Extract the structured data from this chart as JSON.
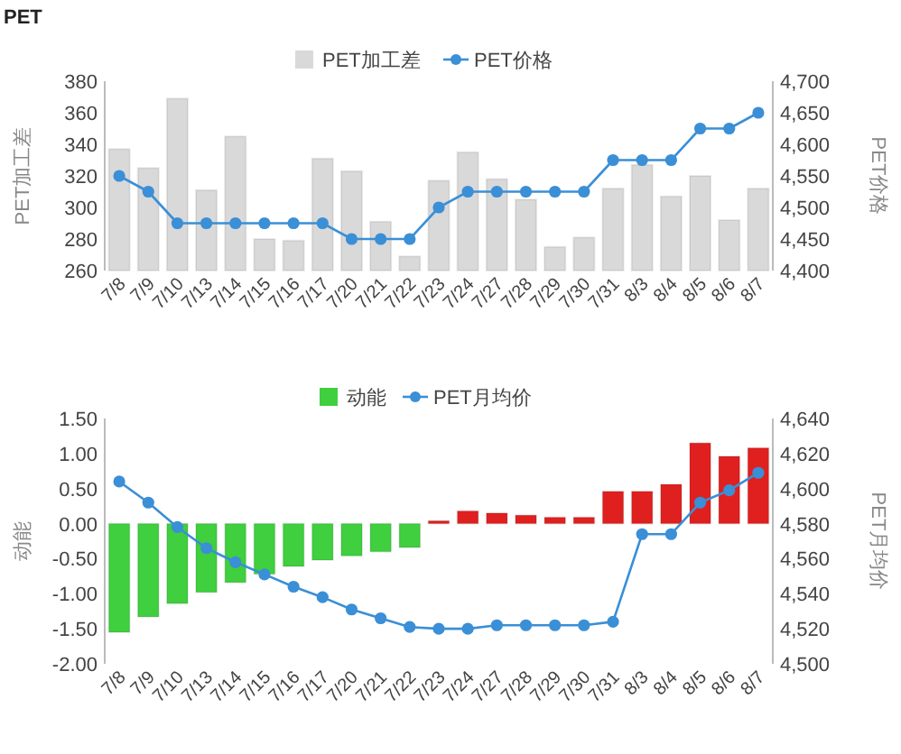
{
  "chart_data": [
    {
      "type": "bar",
      "title": "PET",
      "categories": [
        "7/8",
        "7/9",
        "7/10",
        "7/13",
        "7/14",
        "7/15",
        "7/16",
        "7/17",
        "7/20",
        "7/21",
        "7/22",
        "7/23",
        "7/24",
        "7/27",
        "7/28",
        "7/29",
        "7/30",
        "7/31",
        "8/3",
        "8/4",
        "8/5",
        "8/6",
        "8/7"
      ],
      "ylabel": "PET加工差",
      "y2label": "PET价格",
      "ylim": [
        260,
        380
      ],
      "yticks": [
        260,
        280,
        300,
        320,
        340,
        360,
        380
      ],
      "y2lim": [
        4400,
        4700
      ],
      "y2ticks": [
        {
          "value": 4400,
          "label": "4,400"
        },
        {
          "value": 4450,
          "label": "4,450"
        },
        {
          "value": 4500,
          "label": "4,500"
        },
        {
          "value": 4550,
          "label": "4,550"
        },
        {
          "value": 4600,
          "label": "4,600"
        },
        {
          "value": 4650,
          "label": "4,650"
        },
        {
          "value": 4700,
          "label": "4,700"
        }
      ],
      "legend": "top",
      "marker": "circle",
      "series": [
        {
          "name": "PET加工差",
          "color": "#d9d9d9",
          "values": [
            337,
            325,
            369,
            311,
            345,
            280,
            279,
            331,
            323,
            291,
            269,
            317,
            335,
            318,
            305,
            275,
            281,
            312,
            327,
            307,
            320,
            292,
            312
          ]
        },
        {
          "name": "PET价格",
          "type": "line",
          "axis": "y2",
          "color": "#3a8fd6",
          "values": [
            4550,
            4525,
            4475,
            4475,
            4475,
            4475,
            4475,
            4475,
            4450,
            4450,
            4450,
            4500,
            4525,
            4525,
            4525,
            4525,
            4525,
            4575,
            4575,
            4575,
            4625,
            4625,
            4650
          ]
        }
      ]
    },
    {
      "type": "bar",
      "categories": [
        "7/8",
        "7/9",
        "7/10",
        "7/13",
        "7/14",
        "7/15",
        "7/16",
        "7/17",
        "7/20",
        "7/21",
        "7/22",
        "7/23",
        "7/24",
        "7/27",
        "7/28",
        "7/29",
        "7/30",
        "7/31",
        "8/3",
        "8/4",
        "8/5",
        "8/6",
        "8/7"
      ],
      "ylabel": "动能",
      "y2label": "PET月均价",
      "ylim": [
        -2,
        1.5
      ],
      "yticks": [
        {
          "value": -2,
          "label": "-2.00"
        },
        {
          "value": -1.5,
          "label": "-1.50"
        },
        {
          "value": -1,
          "label": "-1.00"
        },
        {
          "value": -0.5,
          "label": "-0.50"
        },
        {
          "value": 0,
          "label": "0.00"
        },
        {
          "value": 0.5,
          "label": "0.50"
        },
        {
          "value": 1,
          "label": "1.00"
        },
        {
          "value": 1.5,
          "label": "1.50"
        }
      ],
      "y2lim": [
        4500,
        4640
      ],
      "y2ticks": [
        {
          "value": 4500,
          "label": "4,500"
        },
        {
          "value": 4520,
          "label": "4,520"
        },
        {
          "value": 4540,
          "label": "4,540"
        },
        {
          "value": 4560,
          "label": "4,560"
        },
        {
          "value": 4580,
          "label": "4,580"
        },
        {
          "value": 4600,
          "label": "4,600"
        },
        {
          "value": 4620,
          "label": "4,620"
        },
        {
          "value": 4640,
          "label": "4,640"
        }
      ],
      "legend": "top",
      "marker": "circle",
      "series": [
        {
          "name": "动能",
          "color": "#3fcf3f",
          "colors": [
            "#3fcf3f",
            "#3fcf3f",
            "#3fcf3f",
            "#3fcf3f",
            "#3fcf3f",
            "#3fcf3f",
            "#3fcf3f",
            "#3fcf3f",
            "#3fcf3f",
            "#3fcf3f",
            "#3fcf3f",
            "#e0201f",
            "#e0201f",
            "#e0201f",
            "#e0201f",
            "#e0201f",
            "#e0201f",
            "#e0201f",
            "#e0201f",
            "#e0201f",
            "#e0201f",
            "#e0201f",
            "#e0201f"
          ],
          "values": [
            -1.55,
            -1.33,
            -1.14,
            -0.98,
            -0.84,
            -0.72,
            -0.61,
            -0.52,
            -0.46,
            -0.4,
            -0.34,
            0.04,
            0.18,
            0.15,
            0.12,
            0.09,
            0.09,
            0.46,
            0.46,
            0.56,
            1.15,
            0.96,
            1.08
          ]
        },
        {
          "name": "PET月均价",
          "type": "line",
          "axis": "y2",
          "color": "#3a8fd6",
          "values": [
            4604,
            4592,
            4578,
            4566,
            4558,
            4551,
            4544,
            4538,
            4531,
            4526,
            4521,
            4520,
            4520,
            4522,
            4522,
            4522,
            4522,
            4524,
            4574,
            4574,
            4592,
            4599,
            4609
          ]
        }
      ]
    }
  ]
}
